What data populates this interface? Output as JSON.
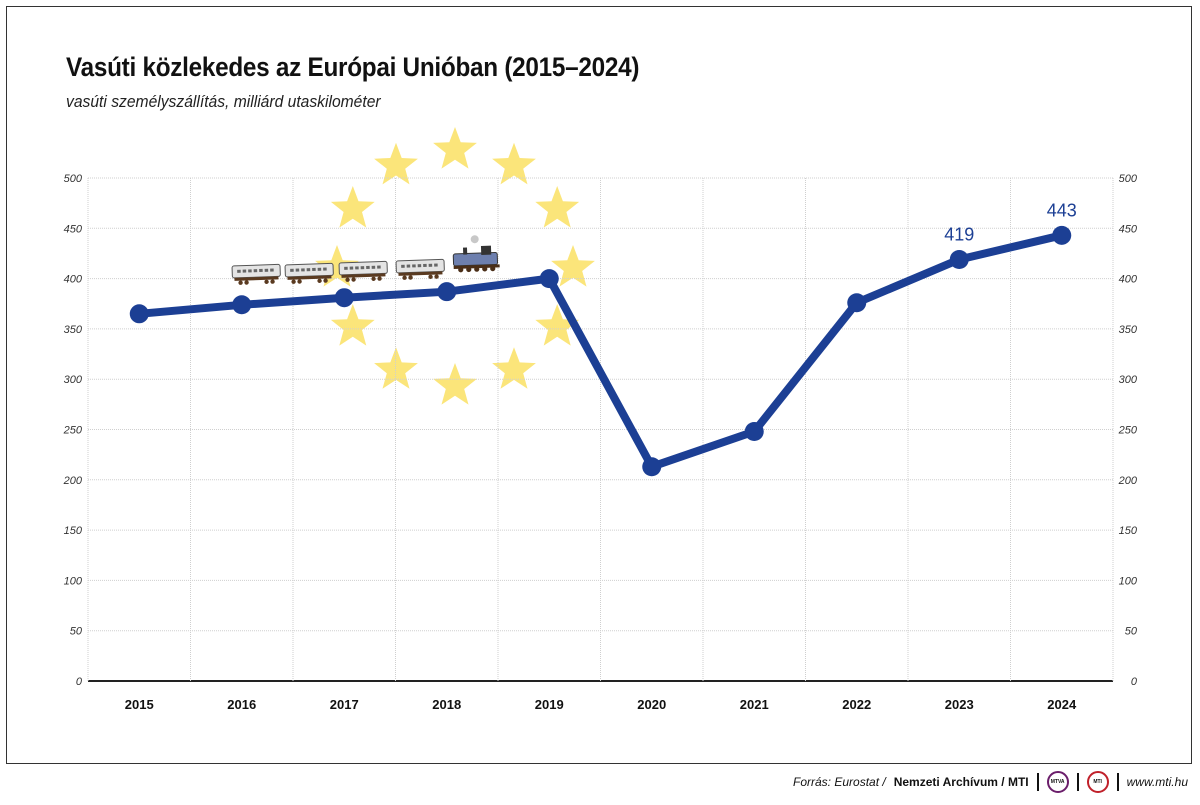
{
  "header": {
    "title": "Vasúti közlekedes az Európai Unióban (2015–2024)",
    "subtitle": "vasúti személyszállítás, milliárd utaskilométer"
  },
  "footer": {
    "source_prefix": "Forrás: Eurostat /",
    "source_bold": "Nemzeti Archívum / MTI",
    "logo1": "MTVA",
    "logo2": "MTI",
    "url": "www.mti.hu"
  },
  "colors": {
    "line": "#1c3f94",
    "star": "#fbe57a",
    "grid": "#cfcfcf"
  },
  "chart_data": {
    "type": "line",
    "title": "Vasúti közlekedes az Európai Unióban (2015–2024)",
    "subtitle": "vasúti személyszállítás, milliárd utaskilométer",
    "xlabel": "",
    "ylabel": "",
    "categories": [
      "2015",
      "2016",
      "2017",
      "2018",
      "2019",
      "2020",
      "2021",
      "2022",
      "2023",
      "2024"
    ],
    "series": [
      {
        "name": "vasúti személyszállítás",
        "values": [
          365,
          374,
          381,
          387,
          400,
          213,
          248,
          376,
          419,
          443
        ]
      }
    ],
    "data_labels": {
      "2023": "419",
      "2024": "443"
    },
    "ylim": [
      0,
      500
    ],
    "yticks": [
      "0",
      "50",
      "100",
      "150",
      "200",
      "250",
      "300",
      "350",
      "400",
      "450",
      "500"
    ],
    "grid": true,
    "legend": "none",
    "decorations": [
      "eu-stars-circle",
      "train-illustration"
    ]
  }
}
